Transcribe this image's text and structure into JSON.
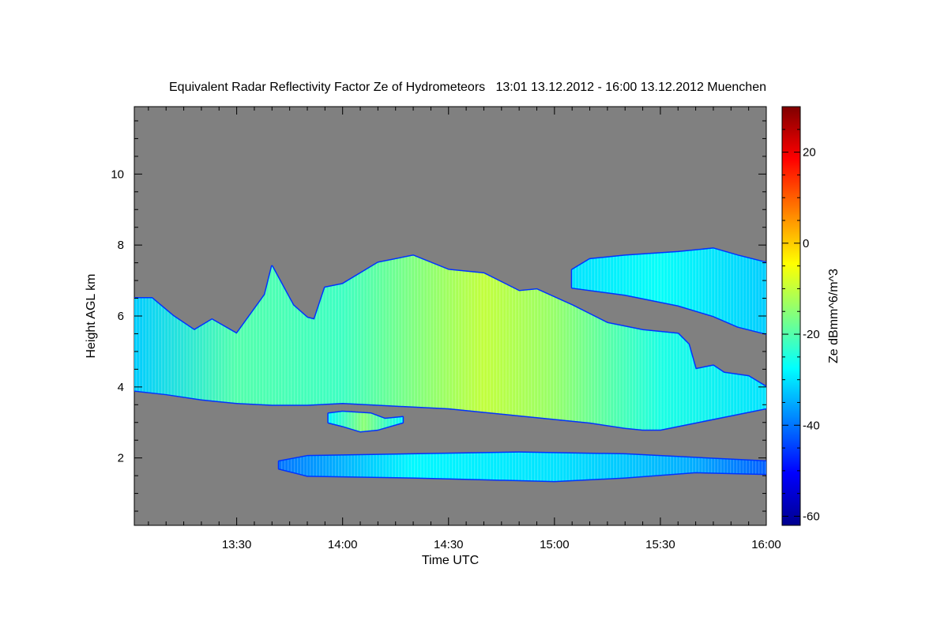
{
  "chart_data": {
    "type": "heatmap",
    "title": "Equivalent Radar Reflectivity Factor Ze of Hydrometeors   13:01 13.12.2012 - 16:00 13.12.2012 Muenchen",
    "xlabel": "Time UTC",
    "ylabel": "Height AGL km",
    "colorbar_label": "Ze dBmm^6/m^3",
    "x_ticks": [
      "13:30",
      "14:00",
      "14:30",
      "15:00",
      "15:30",
      "16:00"
    ],
    "x_tick_minutes": [
      30,
      60,
      90,
      120,
      150,
      180
    ],
    "x_range_minutes": [
      1,
      180
    ],
    "y_ticks": [
      2,
      4,
      6,
      8,
      10
    ],
    "y_range": [
      0.1,
      11.9
    ],
    "colorbar_ticks": [
      -60,
      -40,
      -20,
      0,
      20
    ],
    "colorbar_range": [
      -62,
      30
    ],
    "background_color": "#808080",
    "colormap": [
      "#00008f",
      "#0000ff",
      "#0080ff",
      "#00ffff",
      "#80ff80",
      "#ffff00",
      "#ff8000",
      "#ff0000",
      "#800000"
    ],
    "layers": [
      {
        "name": "main-cloud",
        "top": [
          [
            1,
            6.5
          ],
          [
            6,
            6.5
          ],
          [
            12,
            6.0
          ],
          [
            18,
            5.6
          ],
          [
            23,
            5.9
          ],
          [
            30,
            5.5
          ],
          [
            38,
            6.6
          ],
          [
            40,
            7.4
          ],
          [
            46,
            6.3
          ],
          [
            50,
            5.95
          ],
          [
            52,
            5.9
          ],
          [
            55,
            6.8
          ],
          [
            60,
            6.9
          ],
          [
            70,
            7.5
          ],
          [
            80,
            7.7
          ],
          [
            90,
            7.3
          ],
          [
            100,
            7.2
          ],
          [
            110,
            6.7
          ],
          [
            115,
            6.75
          ],
          [
            125,
            6.3
          ],
          [
            135,
            5.8
          ],
          [
            145,
            5.6
          ],
          [
            155,
            5.5
          ],
          [
            158,
            5.2
          ],
          [
            160,
            4.5
          ],
          [
            165,
            4.6
          ],
          [
            168,
            4.4
          ],
          [
            175,
            4.3
          ],
          [
            180,
            4.0
          ]
        ],
        "base": [
          [
            1,
            3.9
          ],
          [
            10,
            3.8
          ],
          [
            20,
            3.65
          ],
          [
            30,
            3.55
          ],
          [
            40,
            3.5
          ],
          [
            50,
            3.5
          ],
          [
            60,
            3.55
          ],
          [
            70,
            3.5
          ],
          [
            80,
            3.45
          ],
          [
            90,
            3.4
          ],
          [
            100,
            3.3
          ],
          [
            110,
            3.2
          ],
          [
            120,
            3.1
          ],
          [
            130,
            3.0
          ],
          [
            140,
            2.85
          ],
          [
            145,
            2.8
          ],
          [
            150,
            2.8
          ],
          [
            160,
            3.0
          ],
          [
            170,
            3.2
          ],
          [
            180,
            3.4
          ]
        ],
        "peak_ze": [
          [
            1,
            -32
          ],
          [
            30,
            -20
          ],
          [
            60,
            -22
          ],
          [
            90,
            -13
          ],
          [
            100,
            -10
          ],
          [
            120,
            -14
          ],
          [
            150,
            -25
          ],
          [
            180,
            -30
          ]
        ]
      },
      {
        "name": "upper-layer",
        "top": [
          [
            125,
            7.3
          ],
          [
            130,
            7.6
          ],
          [
            140,
            7.7
          ],
          [
            155,
            7.8
          ],
          [
            165,
            7.9
          ],
          [
            172,
            7.7
          ],
          [
            180,
            7.5
          ]
        ],
        "base": [
          [
            125,
            6.8
          ],
          [
            140,
            6.6
          ],
          [
            155,
            6.3
          ],
          [
            165,
            6.0
          ],
          [
            172,
            5.7
          ],
          [
            180,
            5.5
          ]
        ],
        "peak_ze": [
          [
            125,
            -30
          ],
          [
            150,
            -27
          ],
          [
            180,
            -32
          ]
        ]
      },
      {
        "name": "small-patch",
        "top": [
          [
            56,
            3.25
          ],
          [
            60,
            3.3
          ],
          [
            68,
            3.25
          ],
          [
            72,
            3.1
          ],
          [
            77,
            3.15
          ]
        ],
        "base": [
          [
            56,
            3.0
          ],
          [
            60,
            2.9
          ],
          [
            65,
            2.75
          ],
          [
            70,
            2.8
          ],
          [
            77,
            3.0
          ]
        ],
        "peak_ze": [
          [
            56,
            -28
          ],
          [
            66,
            -15
          ],
          [
            77,
            -28
          ]
        ]
      },
      {
        "name": "low-layer",
        "top": [
          [
            42,
            1.9
          ],
          [
            50,
            2.05
          ],
          [
            80,
            2.1
          ],
          [
            110,
            2.15
          ],
          [
            140,
            2.1
          ],
          [
            170,
            1.95
          ],
          [
            180,
            1.9
          ]
        ],
        "base": [
          [
            42,
            1.7
          ],
          [
            50,
            1.5
          ],
          [
            80,
            1.45
          ],
          [
            100,
            1.4
          ],
          [
            120,
            1.35
          ],
          [
            140,
            1.45
          ],
          [
            160,
            1.6
          ],
          [
            180,
            1.55
          ]
        ],
        "peak_ze": [
          [
            42,
            -40
          ],
          [
            80,
            -28
          ],
          [
            120,
            -30
          ],
          [
            160,
            -35
          ],
          [
            180,
            -42
          ]
        ]
      }
    ]
  }
}
